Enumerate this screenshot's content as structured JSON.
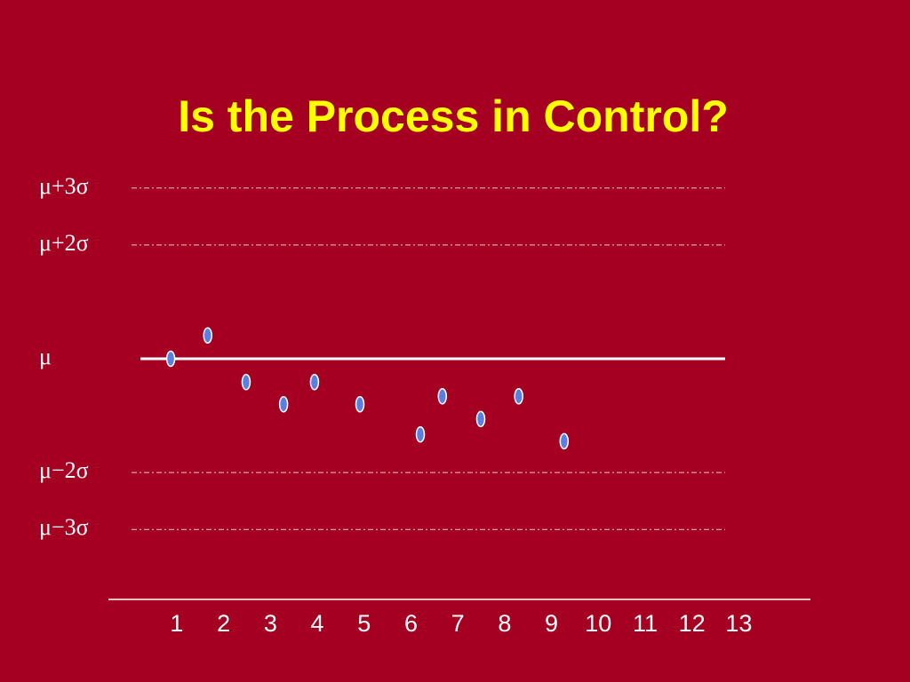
{
  "chart_data": {
    "type": "scatter",
    "title": "Is the Process in Control?",
    "x": [
      0.87,
      1.66,
      2.48,
      3.28,
      3.94,
      4.91,
      6.2,
      6.67,
      7.49,
      8.3,
      9.27
    ],
    "values": [
      0,
      0.41,
      -0.41,
      -0.8,
      -0.41,
      -0.8,
      -1.33,
      -0.66,
      -1.06,
      -0.66,
      -1.45
    ],
    "color": "#5b7fe0",
    "xlim": [
      -0.46,
      14.53
    ],
    "xticks": [
      1,
      2,
      3,
      4,
      5,
      6,
      7,
      8,
      9,
      10,
      11,
      12,
      13
    ],
    "ylim": [
      -4.23,
      3.34
    ],
    "yticks": [
      {
        "value": 3,
        "label": "μ+3σ"
      },
      {
        "value": 2,
        "label": "μ+2σ"
      },
      {
        "value": 0,
        "label": "μ"
      },
      {
        "value": -2,
        "label": "μ−2σ"
      },
      {
        "value": -3,
        "label": "μ−3σ"
      }
    ],
    "grid": true
  }
}
